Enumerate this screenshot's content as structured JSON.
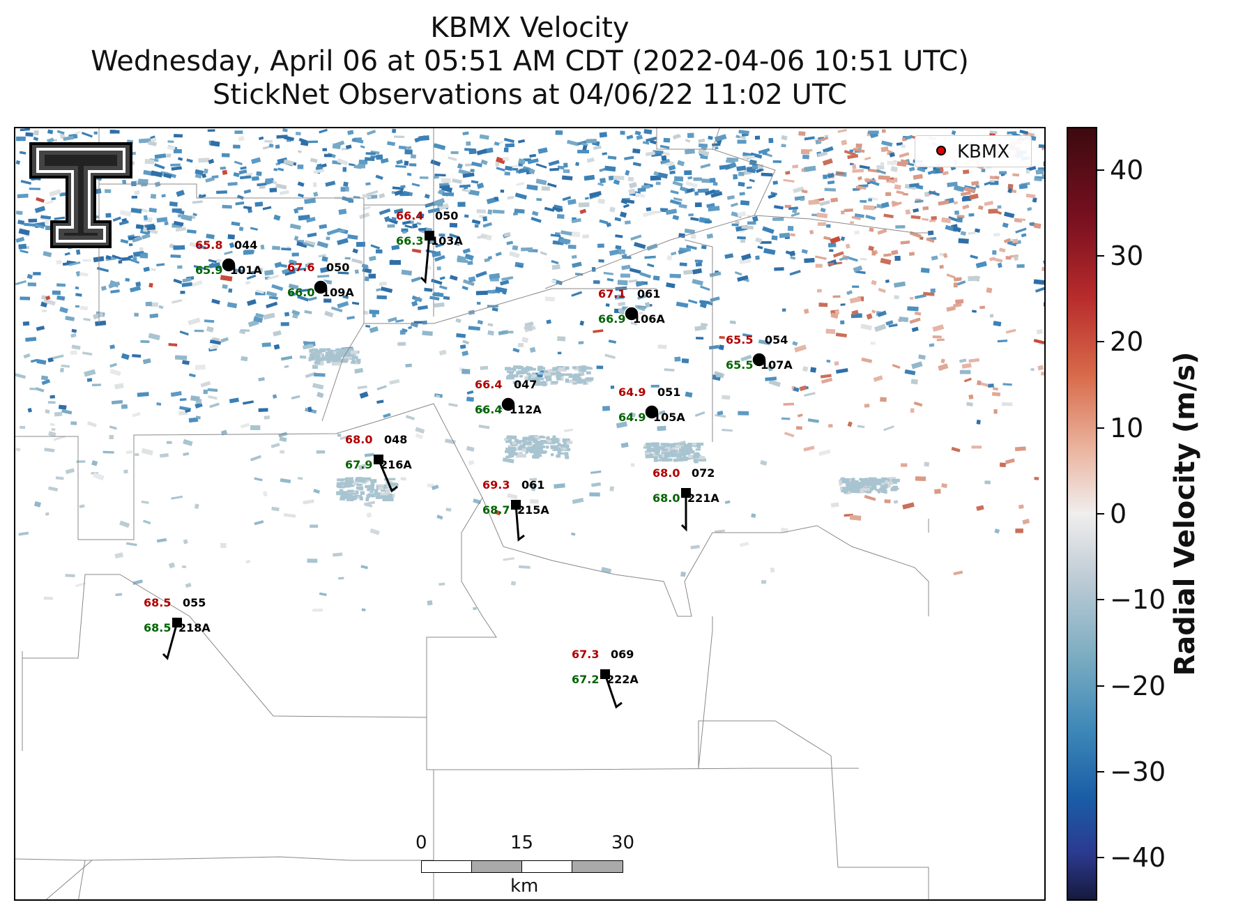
{
  "title": {
    "line1": "KBMX Velocity",
    "line2": "Wednesday, April 06 at 05:51 AM CDT (2022-04-06 10:51 UTC)",
    "line3": "StickNet Observations at 04/06/22 11:02 UTC"
  },
  "legend": {
    "label": "KBMX",
    "marker_color": "#e00000"
  },
  "colorbar": {
    "label": "Radial Velocity (m/s)",
    "ticks": [
      "40",
      "30",
      "20",
      "10",
      "0",
      "−10",
      "−20",
      "−30",
      "−40"
    ],
    "range": [
      -45,
      45
    ]
  },
  "scalebar": {
    "ticks": [
      "0",
      "15",
      "30"
    ],
    "unit": "km"
  },
  "logo": {
    "icon": "texas-tech-double-t-logo-icon"
  },
  "stations": [
    {
      "id": "044",
      "name": "101A",
      "temp": "65.8",
      "dewpoint": "65.9",
      "marker": "circle"
    },
    {
      "id": "050",
      "name": "109A",
      "temp": "67.6",
      "dewpoint": "66.0",
      "marker": "circle"
    },
    {
      "id": "050",
      "name": "103A",
      "temp": "66.4",
      "dewpoint": "66.3",
      "marker": "square"
    },
    {
      "id": "061",
      "name": "106A",
      "temp": "67.1",
      "dewpoint": "66.9",
      "marker": "circle"
    },
    {
      "id": "054",
      "name": "107A",
      "temp": "65.5",
      "dewpoint": "65.5",
      "marker": "circle"
    },
    {
      "id": "047",
      "name": "112A",
      "temp": "66.4",
      "dewpoint": "66.4",
      "marker": "circle"
    },
    {
      "id": "051",
      "name": "105A",
      "temp": "64.9",
      "dewpoint": "64.9",
      "marker": "circle"
    },
    {
      "id": "048",
      "name": "216A",
      "temp": "68.0",
      "dewpoint": "67.9",
      "marker": "square"
    },
    {
      "id": "061",
      "name": "215A",
      "temp": "69.3",
      "dewpoint": "68.7",
      "marker": "square"
    },
    {
      "id": "072",
      "name": "221A",
      "temp": "68.0",
      "dewpoint": "68.0",
      "marker": "square"
    },
    {
      "id": "055",
      "name": "218A",
      "temp": "68.5",
      "dewpoint": "68.5",
      "marker": "square"
    },
    {
      "id": "069",
      "name": "222A",
      "temp": "67.3",
      "dewpoint": "67.2",
      "marker": "square"
    }
  ],
  "colors": {
    "temp": "#b00000",
    "dewpoint": "#006400",
    "label": "#000000"
  }
}
